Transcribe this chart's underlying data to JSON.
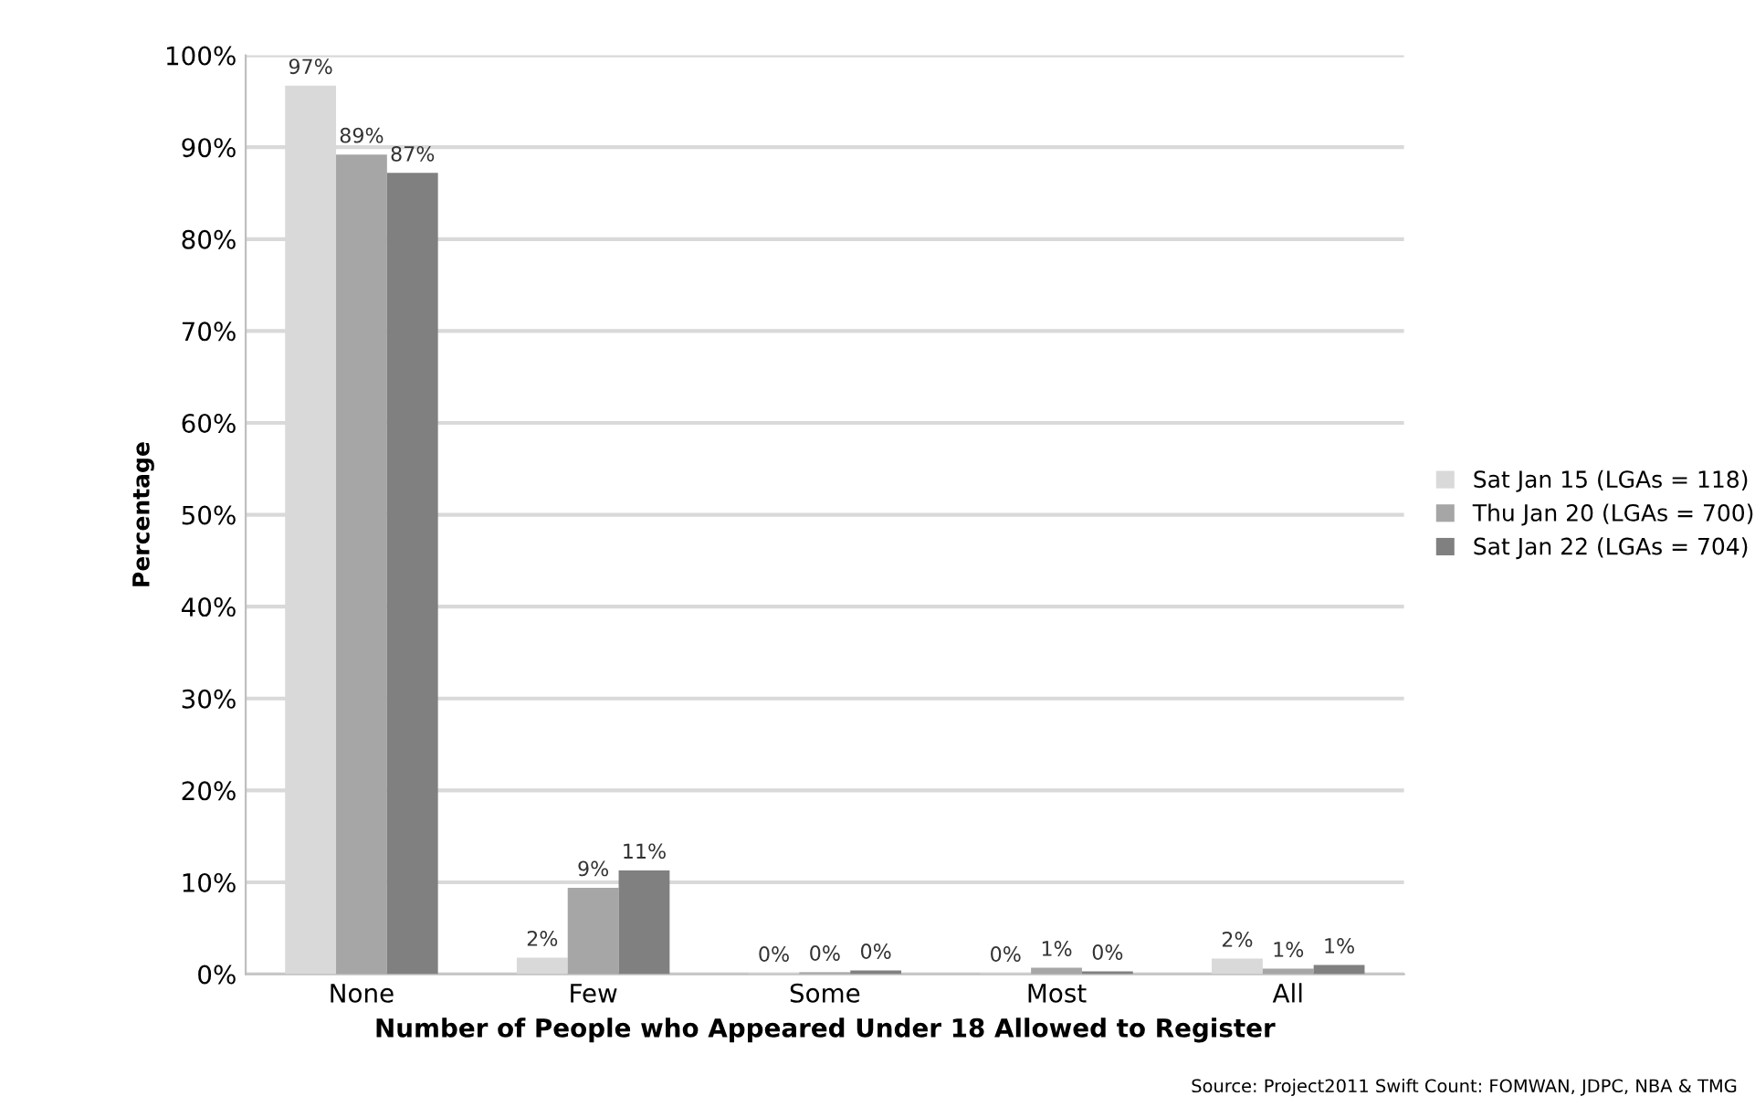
{
  "chart_data": {
    "type": "bar",
    "xlabel": "Number of People who Appeared Under 18 Allowed to Register",
    "ylabel": "Percentage",
    "categories": [
      "None",
      "Few",
      "Some",
      "Most",
      "All"
    ],
    "series": [
      {
        "name": "Sat Jan 15 (LGAs = 118)",
        "color": "#d9d9d9",
        "values": [
          96.7,
          1.8,
          0.1,
          0.1,
          1.7
        ],
        "value_labels": [
          "97%",
          "2%",
          "0%",
          "0%",
          "2%"
        ]
      },
      {
        "name": "Thu Jan 20 (LGAs = 700)",
        "color": "#a6a6a6",
        "values": [
          89.2,
          9.4,
          0.2,
          0.7,
          0.6
        ],
        "value_labels": [
          "89%",
          "9%",
          "0%",
          "1%",
          "1%"
        ]
      },
      {
        "name": "Sat Jan 22 (LGAs = 704)",
        "color": "#808080",
        "values": [
          87.2,
          11.3,
          0.4,
          0.3,
          1.0
        ],
        "value_labels": [
          "87%",
          "11%",
          "0%",
          "0%",
          "1%"
        ]
      }
    ],
    "ylim": [
      0,
      100
    ],
    "yticks": [
      {
        "value": 0,
        "label": "0%"
      },
      {
        "value": 10,
        "label": "10%"
      },
      {
        "value": 20,
        "label": "20%"
      },
      {
        "value": 30,
        "label": "30%"
      },
      {
        "value": 40,
        "label": "40%"
      },
      {
        "value": 50,
        "label": "50%"
      },
      {
        "value": 60,
        "label": "60%"
      },
      {
        "value": 70,
        "label": "70%"
      },
      {
        "value": 80,
        "label": "80%"
      },
      {
        "value": 90,
        "label": "90%"
      },
      {
        "value": 100,
        "label": "100%"
      }
    ],
    "grid": "y",
    "legend": "right",
    "annotations": [
      "Source: Project2011 Swift Count: FOMWAN, JDPC, NBA & TMG"
    ]
  }
}
